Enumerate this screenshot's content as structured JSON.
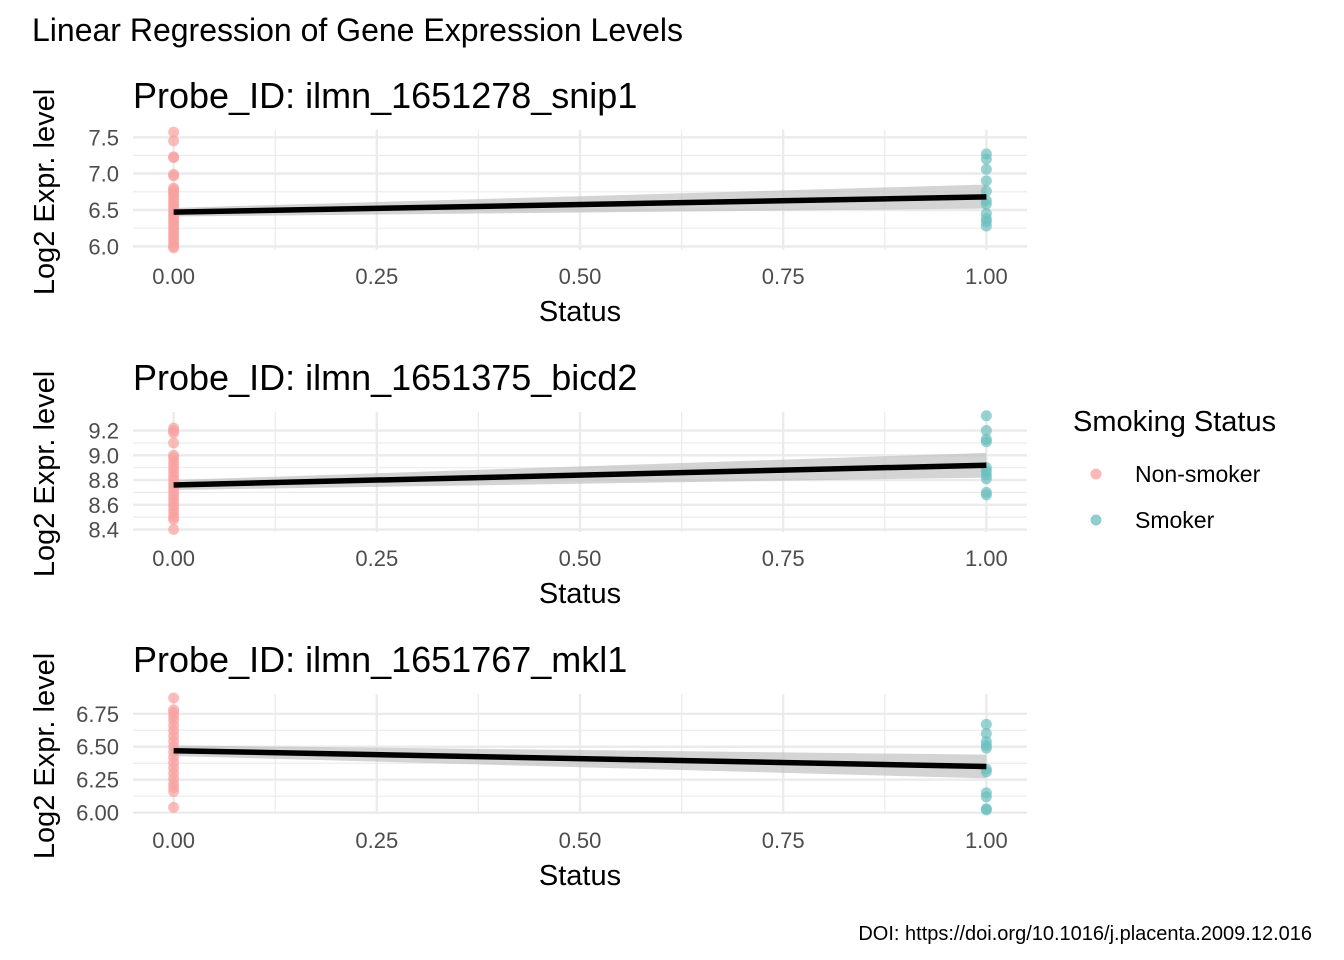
{
  "figure": {
    "title": "Linear Regression of Gene Expression Levels",
    "caption": "DOI: https://doi.org/10.1016/j.placenta.2009.12.016"
  },
  "legend": {
    "title": "Smoking Status",
    "entries": [
      {
        "label": "Non-smoker",
        "color": "#F8A1A0"
      },
      {
        "label": "Smoker",
        "color": "#6CBFBF"
      }
    ]
  },
  "colors": {
    "fit_line": "#000000",
    "ribbon": "#BDBDBD",
    "grid": "#EBEBEB"
  },
  "chart_data": [
    {
      "type": "scatter",
      "title": "Probe_ID: ilmn_1651278_snip1",
      "xlabel": "Status",
      "ylabel": "Log2 Expr. level",
      "xlim": [
        -0.05,
        1.05
      ],
      "ylim": [
        5.95,
        7.6
      ],
      "x_ticks": [
        0.0,
        0.25,
        0.5,
        0.75,
        1.0
      ],
      "x_tick_labels": [
        "0.00",
        "0.25",
        "0.50",
        "0.75",
        "1.00"
      ],
      "y_ticks": [
        6.0,
        6.5,
        7.0,
        7.5
      ],
      "y_tick_labels": [
        "6.0",
        "6.5",
        "7.0",
        "7.5"
      ],
      "series": [
        {
          "name": "Non-smoker",
          "x": 0,
          "y": [
            7.57,
            7.45,
            7.23,
            7.22,
            6.99,
            6.97,
            6.8,
            6.78,
            6.75,
            6.72,
            6.68,
            6.64,
            6.6,
            6.56,
            6.52,
            6.48,
            6.44,
            6.4,
            6.36,
            6.32,
            6.28,
            6.24,
            6.2,
            6.16,
            6.12,
            6.08,
            6.04,
            6.0,
            5.98
          ]
        },
        {
          "name": "Smoker",
          "x": 1,
          "y": [
            7.27,
            7.2,
            7.06,
            6.9,
            6.76,
            6.63,
            6.58,
            6.45,
            6.38,
            6.34,
            6.28
          ]
        }
      ],
      "fit": {
        "x": [
          0,
          1
        ],
        "y": [
          6.47,
          6.68
        ],
        "ci_low": [
          6.41,
          6.52
        ],
        "ci_high": [
          6.53,
          6.85
        ]
      }
    },
    {
      "type": "scatter",
      "title": "Probe_ID: ilmn_1651375_bicd2",
      "xlabel": "Status",
      "ylabel": "Log2 Expr. level",
      "xlim": [
        -0.05,
        1.05
      ],
      "ylim": [
        8.38,
        9.35
      ],
      "x_ticks": [
        0.0,
        0.25,
        0.5,
        0.75,
        1.0
      ],
      "x_tick_labels": [
        "0.00",
        "0.25",
        "0.50",
        "0.75",
        "1.00"
      ],
      "y_ticks": [
        8.4,
        8.6,
        8.8,
        9.0,
        9.2
      ],
      "y_tick_labels": [
        "8.4",
        "8.6",
        "8.8",
        "9.0",
        "9.2"
      ],
      "series": [
        {
          "name": "Non-smoker",
          "x": 0,
          "y": [
            9.22,
            9.2,
            9.18,
            9.1,
            9.0,
            8.98,
            8.95,
            8.92,
            8.89,
            8.86,
            8.83,
            8.8,
            8.77,
            8.74,
            8.71,
            8.68,
            8.65,
            8.62,
            8.59,
            8.56,
            8.53,
            8.5,
            8.48,
            8.4
          ]
        },
        {
          "name": "Smoker",
          "x": 1,
          "y": [
            9.32,
            9.2,
            9.13,
            9.11,
            8.9,
            8.87,
            8.84,
            8.81,
            8.7,
            8.68
          ]
        }
      ],
      "fit": {
        "x": [
          0,
          1
        ],
        "y": [
          8.76,
          8.92
        ],
        "ci_low": [
          8.72,
          8.82
        ],
        "ci_high": [
          8.8,
          9.02
        ]
      }
    },
    {
      "type": "scatter",
      "title": "Probe_ID: ilmn_1651767_mkl1",
      "xlabel": "Status",
      "ylabel": "Log2 Expr. level",
      "xlim": [
        -0.05,
        1.05
      ],
      "ylim": [
        5.99,
        6.9
      ],
      "x_ticks": [
        0.0,
        0.25,
        0.5,
        0.75,
        1.0
      ],
      "x_tick_labels": [
        "0.00",
        "0.25",
        "0.50",
        "0.75",
        "1.00"
      ],
      "y_ticks": [
        6.0,
        6.25,
        6.5,
        6.75
      ],
      "y_tick_labels": [
        "6.00",
        "6.25",
        "6.50",
        "6.75"
      ],
      "series": [
        {
          "name": "Non-smoker",
          "x": 0,
          "y": [
            6.87,
            6.78,
            6.76,
            6.73,
            6.7,
            6.66,
            6.62,
            6.58,
            6.54,
            6.5,
            6.46,
            6.42,
            6.38,
            6.34,
            6.3,
            6.26,
            6.22,
            6.19,
            6.16,
            6.04
          ]
        },
        {
          "name": "Smoker",
          "x": 1,
          "y": [
            6.67,
            6.6,
            6.54,
            6.51,
            6.49,
            6.33,
            6.31,
            6.15,
            6.12,
            6.03,
            6.02
          ]
        }
      ],
      "fit": {
        "x": [
          0,
          1
        ],
        "y": [
          6.47,
          6.35
        ],
        "ci_low": [
          6.43,
          6.26
        ],
        "ci_high": [
          6.51,
          6.44
        ]
      }
    }
  ]
}
